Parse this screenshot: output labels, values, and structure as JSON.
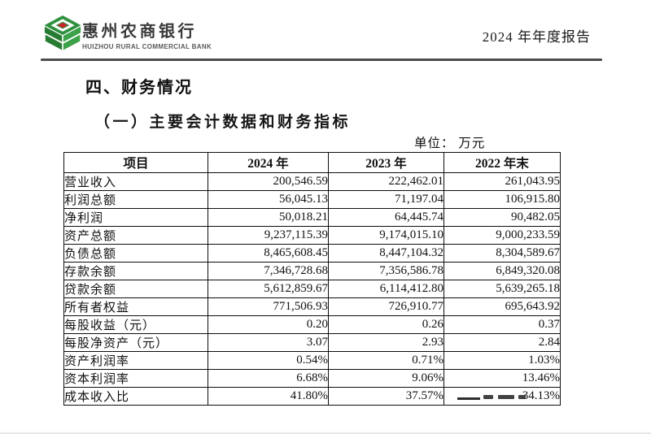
{
  "page": {
    "header": {
      "logo_colors": {
        "green_dark": "#277c34",
        "green_mid": "#2f9140",
        "green_light": "#3ba249",
        "red": "#c8262c"
      },
      "bank_name_cn": "惠州农商银行",
      "bank_name_en": "HUIZHOU RURAL COMMERCIAL BANK",
      "report_title": "2024 年年度报告"
    },
    "section": {
      "heading": "四、财务情况",
      "subheading": "（一）主要会计数据和财务指标",
      "unit_label": "单位： 万元"
    },
    "table": {
      "columns": [
        "项目",
        "2024 年",
        "2023 年",
        "2022 年末"
      ],
      "rows": [
        {
          "label": "营业收入",
          "y2024": "200,546.59",
          "y2023": "222,462.01",
          "y2022": "261,043.95"
        },
        {
          "label": "利润总额",
          "y2024": "56,045.13",
          "y2023": "71,197.04",
          "y2022": "106,915.80"
        },
        {
          "label": "净利润",
          "y2024": "50,018.21",
          "y2023": "64,445.74",
          "y2022": "90,482.05"
        },
        {
          "label": "资产总额",
          "y2024": "9,237,115.39",
          "y2023": "9,174,015.10",
          "y2022": "9,000,233.59"
        },
        {
          "label": "负债总额",
          "y2024": "8,465,608.45",
          "y2023": "8,447,104.32",
          "y2022": "8,304,589.67"
        },
        {
          "label": "存款余额",
          "y2024": "7,346,728.68",
          "y2023": "7,356,586.78",
          "y2022": "6,849,320.08"
        },
        {
          "label": "贷款余额",
          "y2024": "5,612,859.67",
          "y2023": "6,114,412.80",
          "y2022": "5,639,265.18"
        },
        {
          "label": "所有者权益",
          "y2024": "771,506.93",
          "y2023": "726,910.77",
          "y2022": "695,643.92"
        },
        {
          "label": "每股收益（元）",
          "y2024": "0.20",
          "y2023": "0.26",
          "y2022": "0.37"
        },
        {
          "label": "每股净资产（元）",
          "y2024": "3.07",
          "y2023": "2.93",
          "y2022": "2.84"
        },
        {
          "label": "资产利润率",
          "y2024": "0.54%",
          "y2023": "0.71%",
          "y2022": "1.03%"
        },
        {
          "label": "资本利润率",
          "y2024": "6.68%",
          "y2023": "9.06%",
          "y2022": "13.46%"
        },
        {
          "label": "成本收入比",
          "y2024": "41.80%",
          "y2023": "37.57%",
          "y2022": "34.13%"
        }
      ]
    }
  }
}
